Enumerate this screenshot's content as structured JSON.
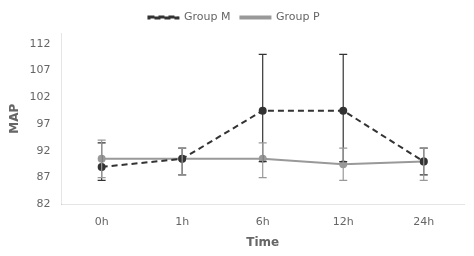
{
  "chart_data": {
    "type": "line",
    "xlabel": "Time",
    "ylabel": "MAP",
    "categories": [
      "0h",
      "1h",
      "6h",
      "12h",
      "24h"
    ],
    "series": [
      {
        "name": "Group M",
        "color": "#333333",
        "line_style": "dashed",
        "marker": "circle",
        "values": [
          89.0,
          90.5,
          99.5,
          99.5,
          90.0
        ],
        "err_upper": [
          4.5,
          2.0,
          10.5,
          10.5,
          2.5
        ],
        "err_lower": [
          2.5,
          3.0,
          9.5,
          9.5,
          2.5
        ]
      },
      {
        "name": "Group P",
        "color": "#999999",
        "line_style": "solid",
        "marker": "circle",
        "values": [
          90.5,
          90.5,
          90.5,
          89.5,
          90.0
        ],
        "err_upper": [
          3.5,
          2.0,
          3.0,
          3.0,
          2.5
        ],
        "err_lower": [
          3.5,
          3.0,
          3.5,
          3.0,
          3.5
        ]
      }
    ],
    "ylim": [
      82,
      114
    ],
    "yticks": [
      82,
      87,
      92,
      97,
      102,
      107,
      112
    ],
    "grid": false,
    "legend": "top"
  }
}
